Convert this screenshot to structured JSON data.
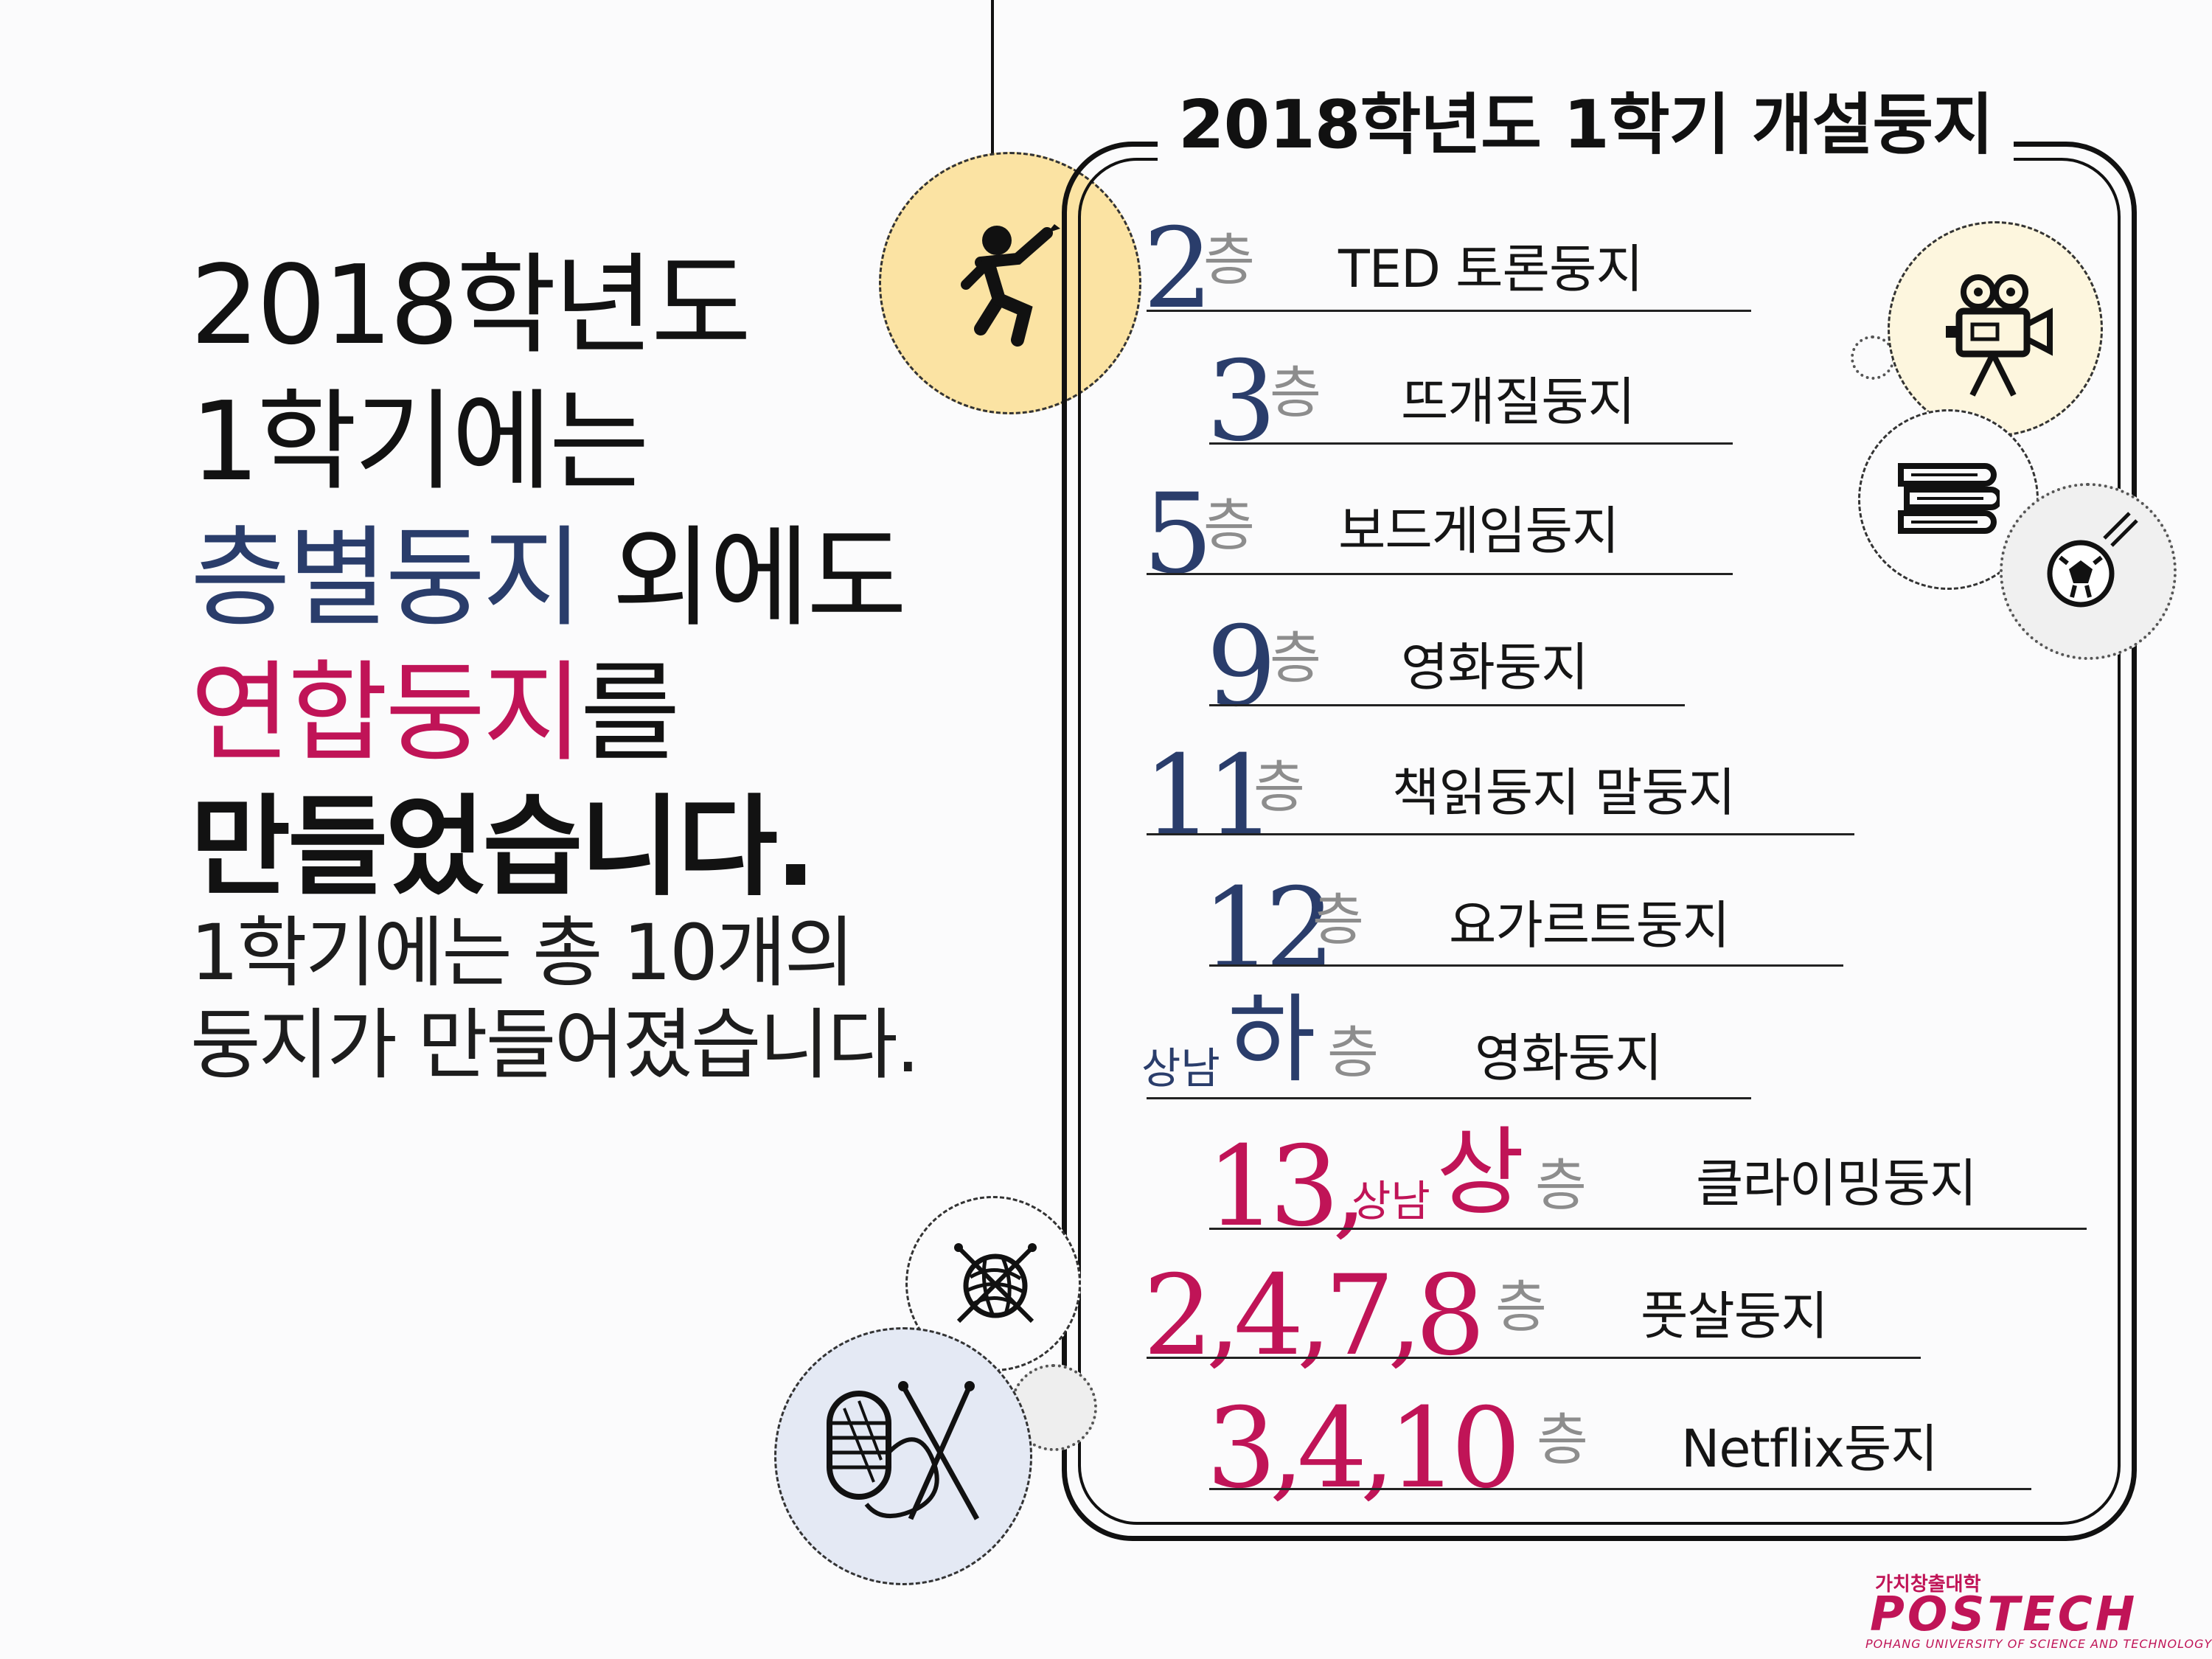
{
  "intro": {
    "line1": "2018학년도",
    "line2": "1학기에는",
    "line3_highlight": "층별둥지",
    "line3_rest": " 외에도",
    "line4_highlight": "연합둥지",
    "line4_rest": "를",
    "line5": "만들었습니다.",
    "sub1": "1학기에는 총 10개의",
    "sub2": "둥지가 만들어졌습니다."
  },
  "board": {
    "title": "2018학년도 1학기 개설둥지",
    "floor_suffix": "층",
    "rows": [
      {
        "floor": "2",
        "name": "TED 토론둥지",
        "color": "#2a3d6b"
      },
      {
        "floor": "3",
        "name": "뜨개질둥지",
        "color": "#2a3d6b"
      },
      {
        "floor": "5",
        "name": "보드게임둥지",
        "color": "#2a3d6b"
      },
      {
        "floor": "9",
        "name": "영화둥지",
        "color": "#2a3d6b"
      },
      {
        "floor": "11",
        "name": "책읽둥지 말둥지",
        "color": "#2a3d6b"
      },
      {
        "floor": "12",
        "name": "요가르트둥지",
        "color": "#2a3d6b"
      },
      {
        "floor_prefix": "상남",
        "floor": "하",
        "name": "영화둥지",
        "color": "#2a3d6b"
      },
      {
        "floor": "13,",
        "floor_prefix": "상남",
        "floor_extra": "상",
        "name": "클라이밍둥지",
        "color": "#c01457"
      },
      {
        "floor": "2,4,7,8",
        "name": "풋살둥지",
        "color": "#c01457"
      },
      {
        "floor": "3,4,10",
        "name": "Netflix둥지",
        "color": "#c01457"
      }
    ]
  },
  "icons": [
    "climber-icon",
    "movie-camera-icon",
    "books-icon",
    "soccer-ball-icon",
    "yarn-ball-icon",
    "knitting-yarn-icon"
  ],
  "colors": {
    "navy": "#2a3d6b",
    "magenta": "#c01457",
    "yellow_circle": "#fbe3a3",
    "blue_circle": "#e4e9f4",
    "cream_circle": "#fdf6de"
  },
  "logo": {
    "tagline": "가치창출대학",
    "name": "POSTECH",
    "subtitle": "POHANG UNIVERSITY OF SCIENCE AND TECHNOLOGY"
  }
}
